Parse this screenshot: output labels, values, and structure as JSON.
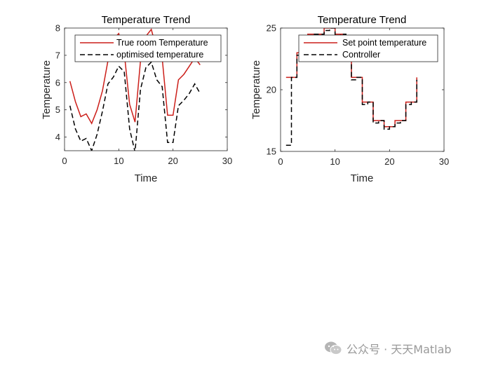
{
  "chart_data": [
    {
      "type": "line",
      "title": "Temperature Trend",
      "xlabel": "Time",
      "ylabel": "Temperature",
      "xlim": [
        0,
        30
      ],
      "ylim": [
        3.5,
        8
      ],
      "xticks": [
        0,
        10,
        20,
        30
      ],
      "yticks": [
        4,
        5,
        6,
        7,
        8
      ],
      "grid": false,
      "legend_position": "top-right",
      "series": [
        {
          "name": "True room Temperature",
          "color": "#cc1f1a",
          "style": "solid",
          "x": [
            1,
            2,
            3,
            4,
            5,
            6,
            7,
            8,
            9,
            10,
            11,
            12,
            13,
            14,
            15,
            16,
            17,
            18,
            19,
            20,
            21,
            22,
            23,
            24,
            25
          ],
          "y": [
            6.05,
            5.3,
            4.75,
            4.85,
            4.5,
            5.0,
            5.7,
            6.8,
            7.6,
            7.8,
            7.1,
            5.2,
            4.55,
            6.8,
            7.7,
            7.95,
            7.2,
            6.9,
            4.8,
            4.8,
            6.1,
            6.3,
            6.6,
            6.9,
            6.65
          ]
        },
        {
          "name": "optimised temperature",
          "color": "#000000",
          "style": "dashed",
          "x": [
            1,
            2,
            3,
            4,
            5,
            6,
            7,
            8,
            9,
            10,
            11,
            12,
            13,
            14,
            15,
            16,
            17,
            18,
            19,
            20,
            21,
            22,
            23,
            24,
            25
          ],
          "y": [
            5.15,
            4.3,
            3.85,
            3.95,
            3.5,
            4.1,
            4.95,
            5.95,
            6.2,
            6.6,
            6.4,
            4.3,
            3.45,
            5.75,
            6.55,
            6.75,
            6.1,
            5.85,
            3.8,
            3.8,
            5.15,
            5.35,
            5.6,
            5.95,
            5.6
          ]
        }
      ]
    },
    {
      "type": "line",
      "title": "Temperature Trend",
      "xlabel": "Time",
      "ylabel": "Temperature",
      "xlim": [
        0,
        30
      ],
      "ylim": [
        15,
        25
      ],
      "xticks": [
        0,
        10,
        20,
        30
      ],
      "yticks": [
        15,
        20,
        25
      ],
      "grid": false,
      "legend_position": "top-right",
      "series": [
        {
          "name": "Set point temperature",
          "color": "#cc1f1a",
          "style": "solid",
          "step": true,
          "x": [
            1,
            2,
            3,
            4,
            5,
            6,
            7,
            8,
            9,
            10,
            11,
            12,
            13,
            14,
            15,
            16,
            17,
            18,
            19,
            20,
            21,
            22,
            23,
            24,
            25
          ],
          "y": [
            21,
            21,
            23,
            23,
            24.5,
            24.5,
            24.5,
            25,
            25,
            24.5,
            24.5,
            23,
            21,
            21,
            19,
            19,
            17.5,
            17.5,
            17,
            17,
            17.5,
            17.5,
            19,
            19,
            21
          ]
        },
        {
          "name": "Controller",
          "color": "#000000",
          "style": "dashed",
          "step": true,
          "x": [
            1,
            2,
            3,
            4,
            5,
            6,
            7,
            8,
            9,
            10,
            11,
            12,
            13,
            14,
            15,
            16,
            17,
            18,
            19,
            20,
            21,
            22,
            23,
            24,
            25
          ],
          "y": [
            15.5,
            21,
            22.8,
            23,
            24.3,
            24.5,
            24.5,
            24.8,
            25,
            24.3,
            24.5,
            22.8,
            20.8,
            21,
            18.8,
            19,
            17.3,
            17.5,
            16.8,
            17,
            17.3,
            17.5,
            18.8,
            19,
            20.8
          ]
        }
      ]
    }
  ],
  "watermark": {
    "icon": "wechat-icon",
    "text": "公众号 · 天天Matlab"
  }
}
